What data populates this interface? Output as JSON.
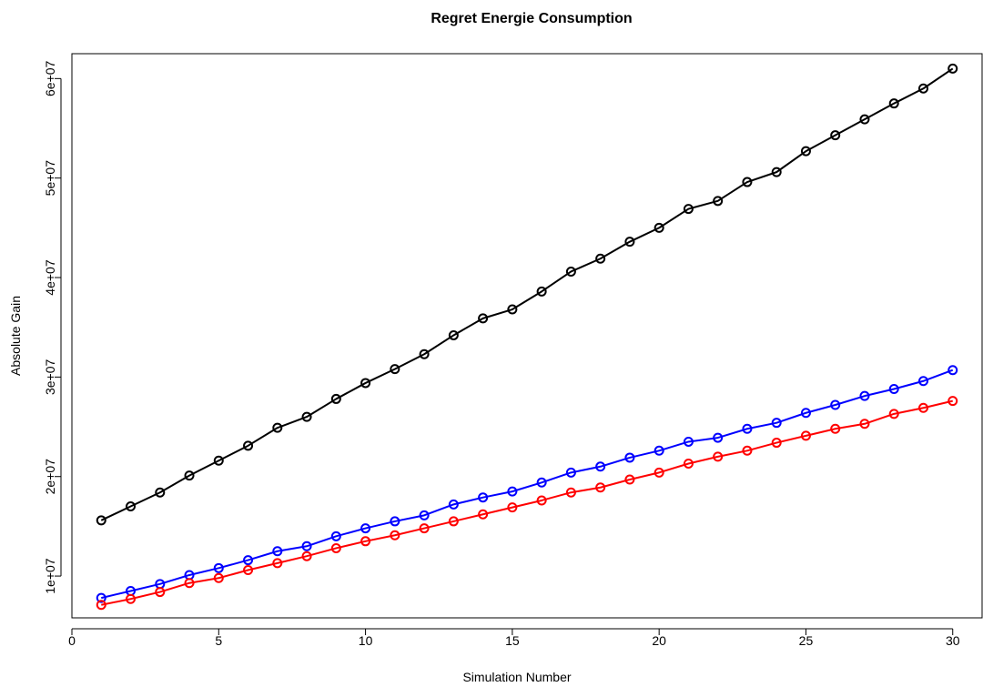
{
  "chart_data": {
    "type": "line",
    "title": "Regret Energie Consumption",
    "xlabel": "Simulation Number",
    "ylabel": "Absolute Gain",
    "xlim": [
      0,
      31
    ],
    "ylim": [
      5800000,
      62500000
    ],
    "xticks": [
      0,
      5,
      10,
      15,
      20,
      25,
      30
    ],
    "xtick_labels": [
      "0",
      "5",
      "10",
      "15",
      "20",
      "25",
      "30"
    ],
    "yticks": [
      10000000,
      20000000,
      30000000,
      40000000,
      50000000,
      60000000
    ],
    "ytick_labels": [
      "1e+07",
      "2e+07",
      "3e+07",
      "4e+07",
      "5e+07",
      "6e+07"
    ],
    "grid": false,
    "marker": "open-circle",
    "x": [
      1,
      2,
      3,
      4,
      5,
      6,
      7,
      8,
      9,
      10,
      11,
      12,
      13,
      14,
      15,
      16,
      17,
      18,
      19,
      20,
      21,
      22,
      23,
      24,
      25,
      26,
      27,
      28,
      29,
      30
    ],
    "series": [
      {
        "color": "#000000",
        "values": [
          15600000,
          17000000,
          18400000,
          20100000,
          21600000,
          23100000,
          24900000,
          26000000,
          27800000,
          29400000,
          30800000,
          32300000,
          34200000,
          35900000,
          36800000,
          38600000,
          40600000,
          41900000,
          43600000,
          45000000,
          46900000,
          47700000,
          49600000,
          50600000,
          52700000,
          54300000,
          55900000,
          57500000,
          59000000,
          61000000
        ]
      },
      {
        "color": "#0000ff",
        "values": [
          7800000,
          8500000,
          9200000,
          10100000,
          10800000,
          11600000,
          12500000,
          13000000,
          14000000,
          14800000,
          15500000,
          16100000,
          17200000,
          17900000,
          18500000,
          19400000,
          20400000,
          21000000,
          21900000,
          22600000,
          23500000,
          23900000,
          24800000,
          25400000,
          26400000,
          27200000,
          28100000,
          28800000,
          29600000,
          30700000
        ]
      },
      {
        "color": "#ff0000",
        "values": [
          7100000,
          7700000,
          8400000,
          9300000,
          9800000,
          10600000,
          11300000,
          12000000,
          12800000,
          13500000,
          14100000,
          14800000,
          15500000,
          16200000,
          16900000,
          17600000,
          18400000,
          18900000,
          19700000,
          20400000,
          21300000,
          22000000,
          22600000,
          23400000,
          24100000,
          24800000,
          25300000,
          26300000,
          26900000,
          27600000
        ]
      }
    ]
  }
}
